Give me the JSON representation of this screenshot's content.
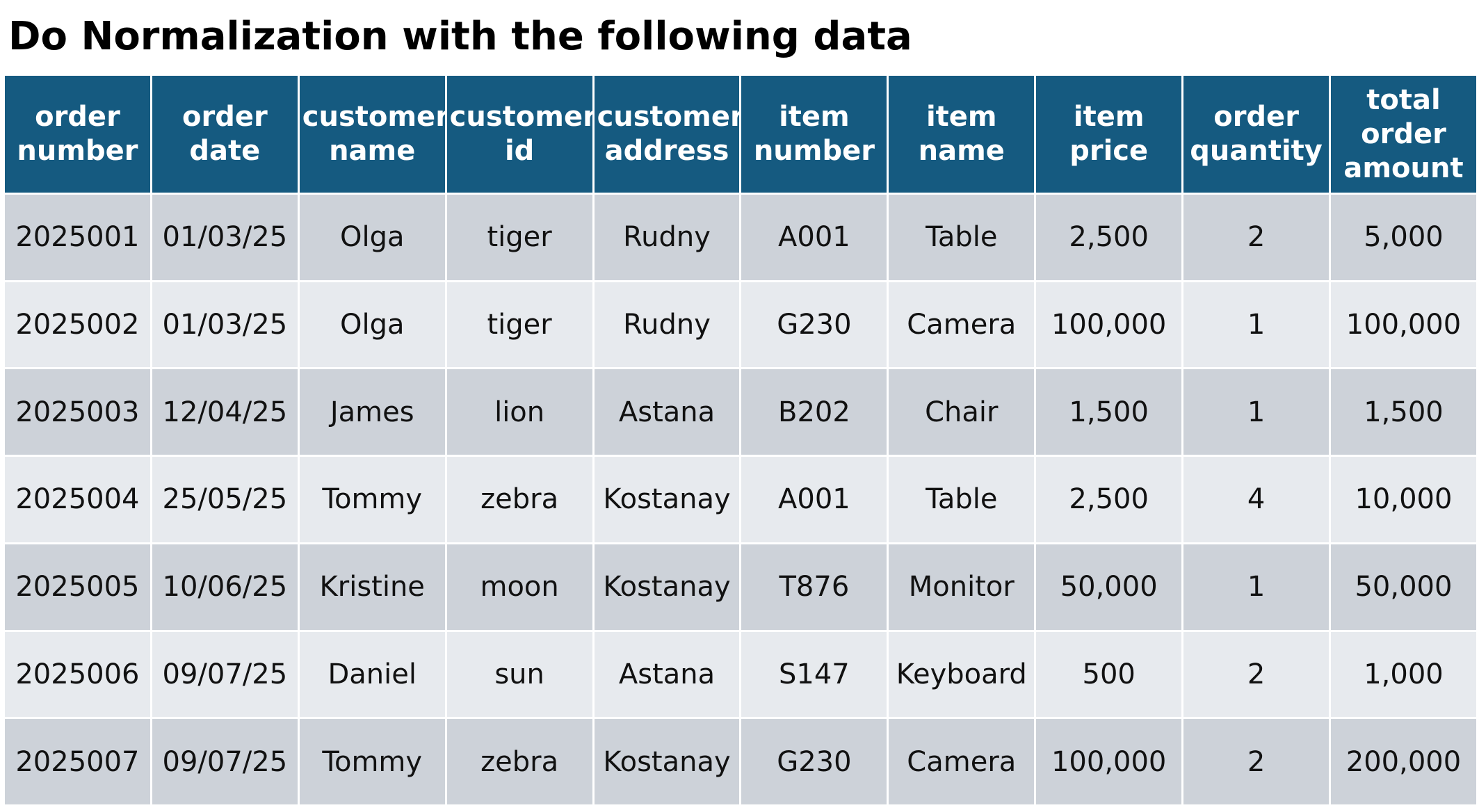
{
  "title": "Do Normalization with the following data",
  "colors": {
    "header_bg": "#155a80",
    "header_text": "#ffffff",
    "row_dark": "#cdd2d9",
    "row_light": "#e7eaee"
  },
  "table": {
    "headers": [
      [
        "order",
        "number"
      ],
      [
        "order",
        "date"
      ],
      [
        "customer",
        "name"
      ],
      [
        "customer",
        "id"
      ],
      [
        "customer",
        "address"
      ],
      [
        "item",
        "number"
      ],
      [
        "item",
        "name"
      ],
      [
        "item",
        "price"
      ],
      [
        "order",
        "quantity"
      ],
      [
        "total",
        "order",
        "amount"
      ]
    ],
    "rows": [
      [
        "2025001",
        "01/03/25",
        "Olga",
        "tiger",
        "Rudny",
        "A001",
        "Table",
        "2,500",
        "2",
        "5,000"
      ],
      [
        "2025002",
        "01/03/25",
        "Olga",
        "tiger",
        "Rudny",
        "G230",
        "Camera",
        "100,000",
        "1",
        "100,000"
      ],
      [
        "2025003",
        "12/04/25",
        "James",
        "lion",
        "Astana",
        "B202",
        "Chair",
        "1,500",
        "1",
        "1,500"
      ],
      [
        "2025004",
        "25/05/25",
        "Tommy",
        "zebra",
        "Kostanay",
        "A001",
        "Table",
        "2,500",
        "4",
        "10,000"
      ],
      [
        "2025005",
        "10/06/25",
        "Kristine",
        "moon",
        "Kostanay",
        "T876",
        "Monitor",
        "50,000",
        "1",
        "50,000"
      ],
      [
        "2025006",
        "09/07/25",
        "Daniel",
        "sun",
        "Astana",
        "S147",
        "Keyboard",
        "500",
        "2",
        "1,000"
      ],
      [
        "2025007",
        "09/07/25",
        "Tommy",
        "zebra",
        "Kostanay",
        "G230",
        "Camera",
        "100,000",
        "2",
        "200,000"
      ]
    ]
  }
}
